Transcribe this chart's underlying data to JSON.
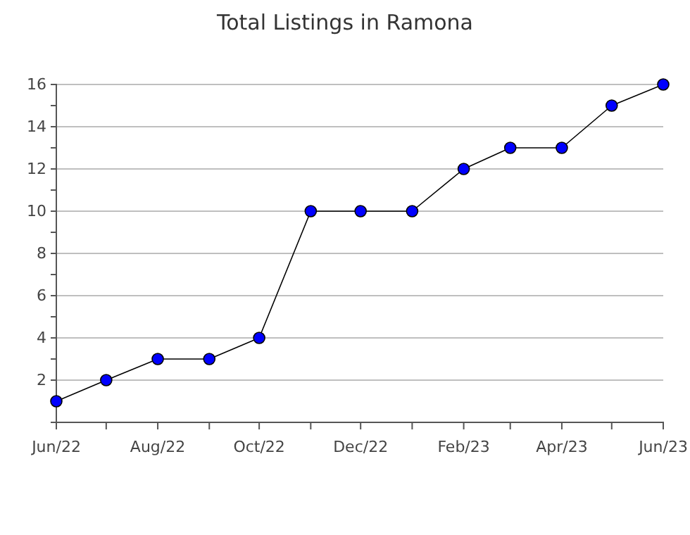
{
  "chart_data": {
    "type": "line",
    "title": "Total Listings in Ramona",
    "x": [
      "2022-06",
      "2022-07",
      "2022-08",
      "2022-09",
      "2022-10",
      "2022-11",
      "2022-12",
      "2023-01",
      "2023-02",
      "2023-03",
      "2023-04",
      "2023-05",
      "2023-06"
    ],
    "series": [
      {
        "color": "#0000ff",
        "values": [
          1,
          2,
          3,
          3,
          4,
          10,
          10,
          10,
          12,
          13,
          13,
          15,
          16
        ]
      }
    ],
    "xlim": [
      "2022-06",
      "2023-06"
    ],
    "xticks": [
      {
        "value": "2022-06",
        "label": "Jun/22"
      },
      {
        "value": "2022-07",
        "label": null
      },
      {
        "value": "2022-08",
        "label": "Aug/22"
      },
      {
        "value": "2022-09",
        "label": null
      },
      {
        "value": "2022-10",
        "label": "Oct/22"
      },
      {
        "value": "2022-11",
        "label": null
      },
      {
        "value": "2022-12",
        "label": "Dec/22"
      },
      {
        "value": "2023-01",
        "label": null
      },
      {
        "value": "2023-02",
        "label": "Feb/23"
      },
      {
        "value": "2023-03",
        "label": null
      },
      {
        "value": "2023-04",
        "label": "Apr/23"
      },
      {
        "value": "2023-05",
        "label": null
      },
      {
        "value": "2023-06",
        "label": "Jun/23"
      }
    ],
    "ylim": [
      0,
      16
    ],
    "yticks": [
      {
        "value": 1,
        "label": null
      },
      2,
      {
        "value": 3,
        "label": null
      },
      4,
      {
        "value": 5,
        "label": null
      },
      6,
      {
        "value": 7,
        "label": null
      },
      8,
      {
        "value": 9,
        "label": null
      },
      10,
      {
        "value": 11,
        "label": null
      },
      12,
      {
        "value": 13,
        "label": null
      },
      14,
      {
        "value": 15,
        "label": null
      },
      16
    ],
    "grid": "y",
    "marker": "circle",
    "line_style": "solid"
  }
}
